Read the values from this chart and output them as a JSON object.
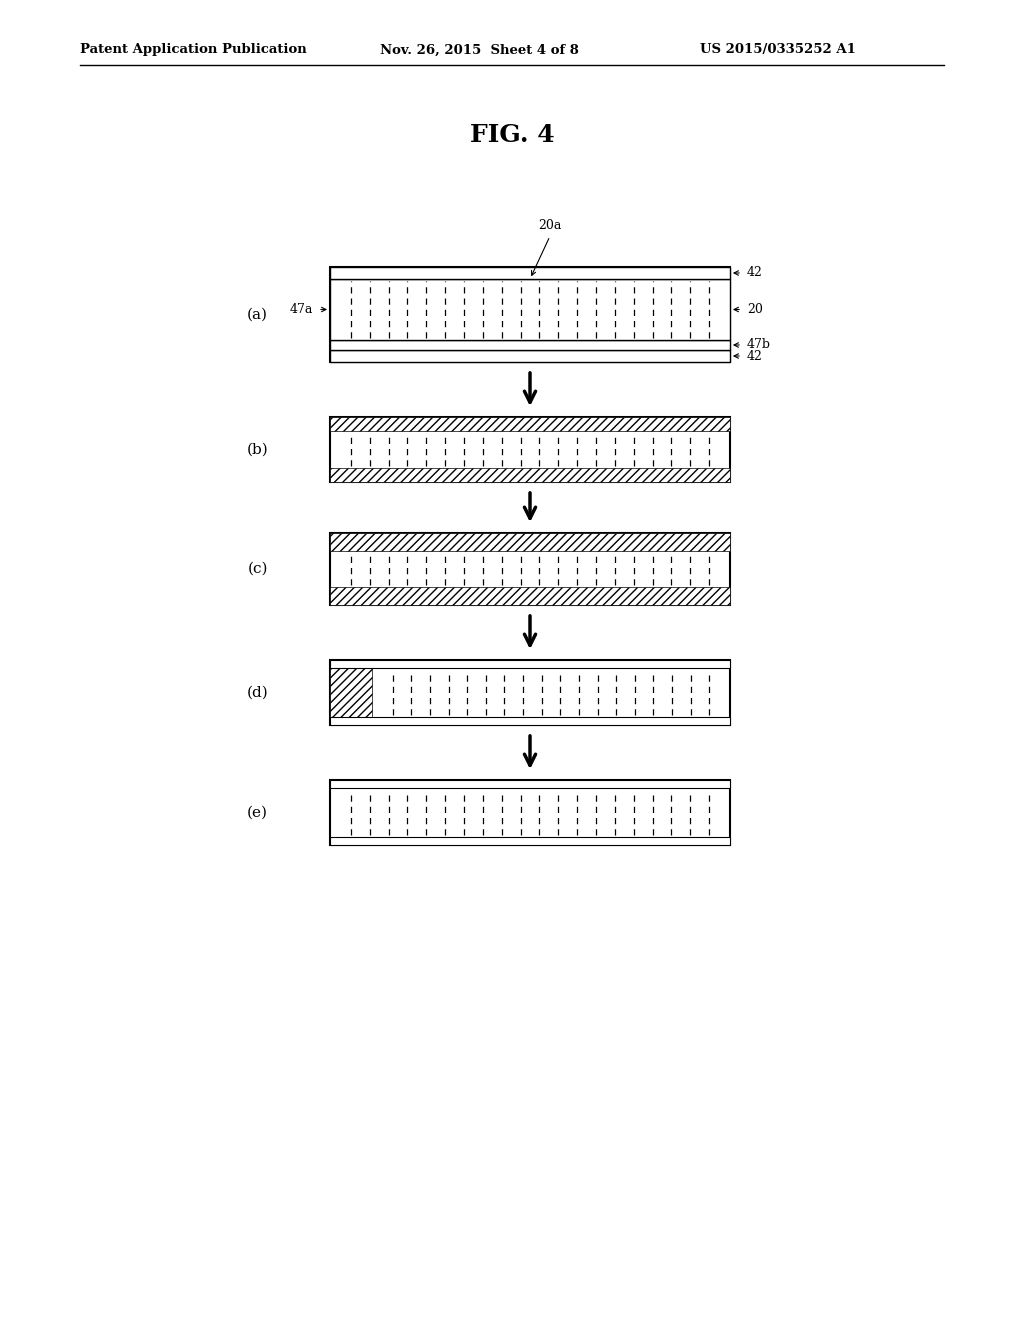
{
  "title": "FIG. 4",
  "header_left": "Patent Application Publication",
  "header_mid": "Nov. 26, 2015  Sheet 4 of 8",
  "header_right": "US 2015/0335252 A1",
  "panels": [
    "(a)",
    "(b)",
    "(c)",
    "(d)",
    "(e)"
  ],
  "bg_color": "#ffffff",
  "line_color": "#000000"
}
